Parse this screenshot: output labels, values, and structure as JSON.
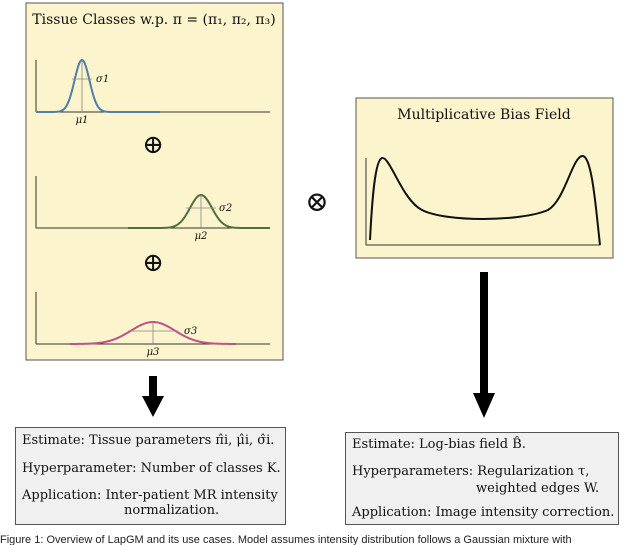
{
  "colors": {
    "panel_fill": "#fbf4cc",
    "panel_stroke": "#555555",
    "curve1": "#4f7ea8",
    "curve2": "#4f6e3c",
    "curve3": "#c0508a",
    "bias_curve": "#111111",
    "info_fill": "#f0f0f0"
  },
  "tissue_panel": {
    "title": "Tissue Classes w.p. π = (π₁, π₂, π₃)",
    "plots": [
      {
        "mu": "μ1",
        "sigma": "σ1",
        "icon": "gaussian-curve-icon"
      },
      {
        "mu": "μ2",
        "sigma": "σ2",
        "icon": "gaussian-curve-icon"
      },
      {
        "mu": "μ3",
        "sigma": "σ3",
        "icon": "gaussian-curve-icon"
      }
    ],
    "operators": [
      "⊕",
      "⊕"
    ]
  },
  "multiply_operator": "⊗",
  "bias_panel": {
    "title": "Multiplicative Bias Field"
  },
  "left_info": {
    "lines": [
      "Estimate: Tissue parameters π̂i, μ̂i, σ̂i.",
      "Hyperparameter: Number of classes K.",
      "Application: Inter-patient MR intensity",
      "normalization."
    ]
  },
  "right_info": {
    "lines": [
      "Estimate: Log-bias field B̂.",
      "Hyperparameters: Regularization τ,",
      "weighted edges W.",
      "Application: Image intensity correction."
    ]
  },
  "caption": "Figure 1: Overview of LapGM and its use cases. Model assumes intensity distribution follows a Gaussian mixture with"
}
